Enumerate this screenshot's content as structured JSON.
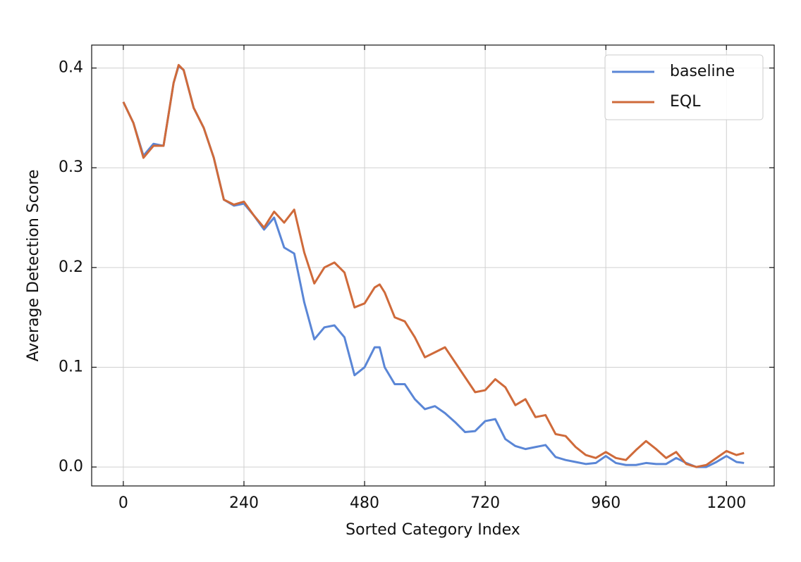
{
  "chart_data": {
    "type": "line",
    "xlabel": "Sorted Category Index",
    "ylabel": "Average Detection Score",
    "x": [
      0,
      20,
      40,
      60,
      80,
      100,
      110,
      120,
      140,
      160,
      180,
      200,
      220,
      240,
      260,
      280,
      300,
      320,
      340,
      360,
      380,
      400,
      420,
      440,
      460,
      480,
      500,
      510,
      520,
      540,
      560,
      580,
      600,
      620,
      640,
      660,
      680,
      700,
      720,
      740,
      760,
      780,
      800,
      820,
      840,
      860,
      880,
      900,
      920,
      940,
      960,
      980,
      1000,
      1020,
      1040,
      1060,
      1080,
      1100,
      1120,
      1140,
      1160,
      1180,
      1200,
      1220,
      1235
    ],
    "series": [
      {
        "name": "baseline",
        "color": "#5a86d6",
        "values": [
          0.366,
          0.345,
          0.312,
          0.324,
          0.322,
          0.385,
          0.402,
          0.398,
          0.36,
          0.34,
          0.31,
          0.268,
          0.262,
          0.264,
          0.252,
          0.238,
          0.25,
          0.22,
          0.214,
          0.165,
          0.128,
          0.14,
          0.142,
          0.13,
          0.092,
          0.1,
          0.12,
          0.12,
          0.1,
          0.083,
          0.083,
          0.068,
          0.058,
          0.061,
          0.054,
          0.045,
          0.035,
          0.036,
          0.046,
          0.048,
          0.028,
          0.021,
          0.018,
          0.02,
          0.022,
          0.01,
          0.007,
          0.005,
          0.003,
          0.004,
          0.011,
          0.004,
          0.002,
          0.002,
          0.004,
          0.003,
          0.003,
          0.009,
          0.004,
          0.0,
          0.0,
          0.005,
          0.011,
          0.005,
          0.004
        ]
      },
      {
        "name": "EQL",
        "color": "#cf6a3a",
        "values": [
          0.366,
          0.345,
          0.31,
          0.322,
          0.322,
          0.385,
          0.403,
          0.398,
          0.36,
          0.34,
          0.31,
          0.268,
          0.263,
          0.266,
          0.252,
          0.24,
          0.256,
          0.245,
          0.258,
          0.215,
          0.184,
          0.2,
          0.205,
          0.195,
          0.16,
          0.164,
          0.18,
          0.183,
          0.175,
          0.15,
          0.146,
          0.13,
          0.11,
          0.115,
          0.12,
          0.105,
          0.09,
          0.075,
          0.077,
          0.088,
          0.08,
          0.062,
          0.068,
          0.05,
          0.052,
          0.033,
          0.031,
          0.02,
          0.012,
          0.009,
          0.015,
          0.009,
          0.007,
          0.017,
          0.026,
          0.018,
          0.009,
          0.015,
          0.003,
          0.0,
          0.002,
          0.009,
          0.016,
          0.012,
          0.014
        ]
      }
    ],
    "xlim": [
      -63,
      1295
    ],
    "ylim": [
      -0.019,
      0.423
    ],
    "xticks": [
      0,
      240,
      480,
      720,
      960,
      1200
    ],
    "yticks": [
      {
        "value": 0,
        "label": "0.0"
      },
      0.1,
      0.2,
      0.3,
      0.4
    ],
    "grid": true,
    "legend": "upper right"
  }
}
